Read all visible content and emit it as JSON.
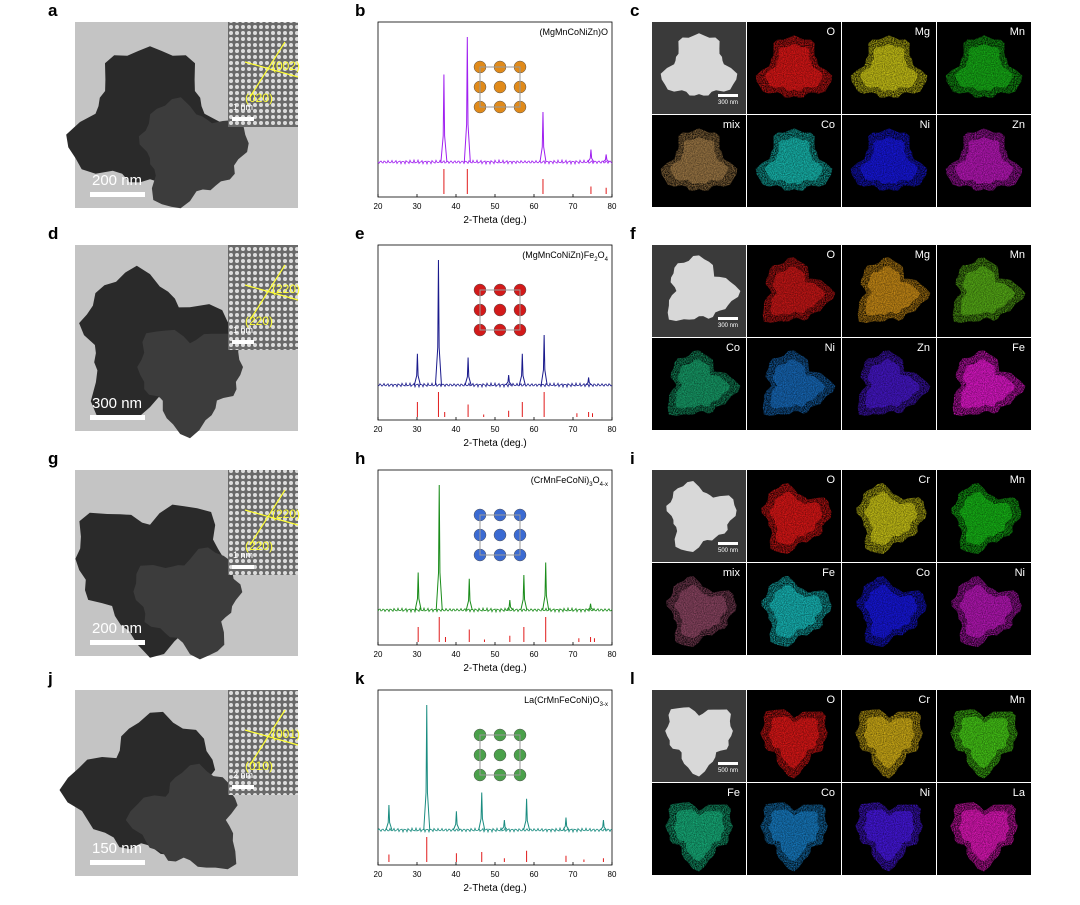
{
  "xrd_axis": {
    "xlim": [
      20,
      80
    ],
    "xticks": [
      20,
      30,
      40,
      50,
      60,
      70,
      80
    ],
    "xlabel": "2-Theta (deg.)"
  },
  "rows": [
    {
      "tem": {
        "letter": "a",
        "scale_bar": "200 nm",
        "inset_scale": "1 nm",
        "planes": [
          "(002)",
          "(020)"
        ]
      },
      "xrd": {
        "letter": "b",
        "formula": [
          "(MgMnCoNiZn)O"
        ],
        "color": "#a020f0",
        "peaks_x": [
          36.9,
          42.9,
          62.3,
          74.6,
          78.5
        ],
        "peaks_intensity": [
          70,
          100,
          40,
          10,
          6
        ],
        "ref_x": [
          36.9,
          42.9,
          62.3,
          74.6,
          78.5
        ],
        "ref_intensity": [
          100,
          100,
          60,
          30,
          25
        ]
      },
      "eds": {
        "letter": "c",
        "haadf_scale": "300 nm",
        "tiles": [
          {
            "label": "O",
            "color": "#ff1a1a"
          },
          {
            "label": "Mg",
            "color": "#e6e01a"
          },
          {
            "label": "Mn",
            "color": "#1ac81a"
          },
          {
            "label": "mix",
            "color": "#b48a50"
          },
          {
            "label": "Co",
            "color": "#1ad2c8"
          },
          {
            "label": "Ni",
            "color": "#1a1aff"
          },
          {
            "label": "Zn",
            "color": "#d21ad2"
          }
        ]
      }
    },
    {
      "tem": {
        "letter": "d",
        "scale_bar": "300 nm",
        "inset_scale": "1 nm",
        "planes": [
          "(220)",
          "(220)"
        ]
      },
      "xrd": {
        "letter": "e",
        "formula": [
          "(MgMnCoNiZn)Fe",
          "2",
          "O",
          "4"
        ],
        "color": "#1a1a8c",
        "peaks_x": [
          30.1,
          35.5,
          43.1,
          53.5,
          57.0,
          62.6,
          74.0
        ],
        "peaks_intensity": [
          25,
          100,
          22,
          8,
          25,
          40,
          6
        ],
        "ref_x": [
          30.1,
          35.5,
          37.1,
          43.1,
          47.1,
          53.5,
          57.0,
          62.6,
          71.0,
          74.0,
          75.0
        ],
        "ref_intensity": [
          60,
          100,
          20,
          50,
          10,
          25,
          60,
          100,
          15,
          20,
          15
        ]
      },
      "eds": {
        "letter": "f",
        "haadf_scale": "300 nm",
        "tiles": [
          {
            "label": "O",
            "color": "#e61a1a"
          },
          {
            "label": "Mg",
            "color": "#e6a01a"
          },
          {
            "label": "Mn",
            "color": "#64c81a"
          },
          {
            "label": "Co",
            "color": "#1ab478"
          },
          {
            "label": "Ni",
            "color": "#1a78d2"
          },
          {
            "label": "Zn",
            "color": "#501ae6"
          },
          {
            "label": "Fe",
            "color": "#ff1ae6"
          }
        ]
      }
    },
    {
      "tem": {
        "letter": "g",
        "scale_bar": "200 nm",
        "inset_scale": "1 nm",
        "planes": [
          "(220)",
          "(220)"
        ]
      },
      "xrd": {
        "letter": "h",
        "formula": [
          "(CrMnFeCoNi)",
          "3",
          "O",
          "4-x"
        ],
        "color": "#1a8c1a",
        "peaks_x": [
          30.3,
          35.7,
          43.4,
          53.8,
          57.4,
          63.0,
          74.5
        ],
        "peaks_intensity": [
          30,
          100,
          25,
          8,
          28,
          38,
          5
        ],
        "ref_x": [
          30.3,
          35.7,
          37.3,
          43.4,
          47.3,
          53.8,
          57.4,
          63.0,
          71.5,
          74.5,
          75.5
        ],
        "ref_intensity": [
          60,
          100,
          20,
          50,
          10,
          25,
          60,
          100,
          15,
          20,
          15
        ]
      },
      "eds": {
        "letter": "i",
        "haadf_scale": "500 nm",
        "tiles": [
          {
            "label": "O",
            "color": "#ff1a1a"
          },
          {
            "label": "Cr",
            "color": "#e6e01a"
          },
          {
            "label": "Mn",
            "color": "#1ad21a"
          },
          {
            "label": "mix",
            "color": "#a05070"
          },
          {
            "label": "Fe",
            "color": "#1ad2d2"
          },
          {
            "label": "Co",
            "color": "#1a1aff"
          },
          {
            "label": "Ni",
            "color": "#d21ad2"
          }
        ]
      }
    },
    {
      "tem": {
        "letter": "j",
        "scale_bar": "150 nm",
        "inset_scale": "2 nm",
        "planes": [
          "(001)",
          "(010)"
        ]
      },
      "xrd": {
        "letter": "k",
        "formula": [
          "La(CrMnFeCoNi)O",
          "3-x"
        ],
        "color": "#1a8c80",
        "peaks_x": [
          22.8,
          32.5,
          40.1,
          46.6,
          52.4,
          58.1,
          68.2,
          77.8
        ],
        "peaks_intensity": [
          20,
          100,
          15,
          30,
          8,
          25,
          10,
          8
        ],
        "ref_x": [
          22.8,
          32.5,
          40.1,
          46.6,
          52.4,
          58.1,
          68.2,
          72.8,
          77.8
        ],
        "ref_intensity": [
          30,
          100,
          35,
          40,
          15,
          45,
          25,
          10,
          15
        ]
      },
      "eds": {
        "letter": "l",
        "haadf_scale": "500 nm",
        "tiles": [
          {
            "label": "O",
            "color": "#ff1a1a"
          },
          {
            "label": "Cr",
            "color": "#f0c81a"
          },
          {
            "label": "Mn",
            "color": "#50e61a"
          },
          {
            "label": "Fe",
            "color": "#1ac88c"
          },
          {
            "label": "Co",
            "color": "#1a8cdc"
          },
          {
            "label": "Ni",
            "color": "#501aff"
          },
          {
            "label": "La",
            "color": "#ff1ad2"
          }
        ]
      }
    }
  ]
}
